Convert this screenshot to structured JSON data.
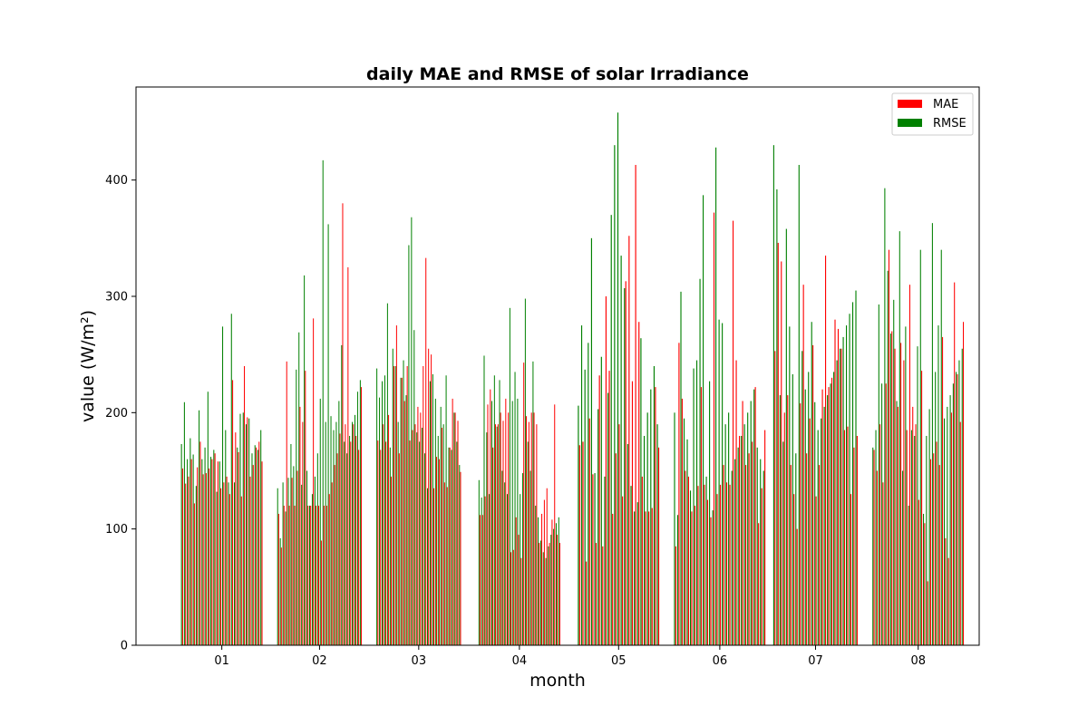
{
  "chart_data": {
    "type": "bar",
    "title": "daily MAE and RMSE of solar Irradiance",
    "xlabel": "month",
    "ylabel": "value (W/m²)",
    "ylim": [
      0,
      480
    ],
    "yticks": [
      0,
      100,
      200,
      300,
      400
    ],
    "xlim": [
      0.1,
      8.6
    ],
    "months": [
      {
        "label": "01",
        "start": 0.55,
        "end": 1.38
      },
      {
        "label": "02",
        "start": 1.52,
        "end": 2.38
      },
      {
        "label": "03",
        "start": 2.52,
        "end": 3.38
      },
      {
        "label": "04",
        "start": 3.55,
        "end": 4.38
      },
      {
        "label": "05",
        "start": 4.55,
        "end": 5.38
      },
      {
        "label": "06",
        "start": 5.52,
        "end": 6.45
      },
      {
        "label": "07",
        "start": 6.52,
        "end": 7.38
      },
      {
        "label": "08",
        "start": 7.52,
        "end": 8.45
      }
    ],
    "legend": {
      "position": "top-right"
    },
    "grid": false,
    "series": [
      {
        "name": "MAE",
        "color": "#ff0000",
        "values": [
          [
            152,
            139,
            145,
            160,
            122,
            153,
            175,
            147,
            148,
            152,
            160,
            165,
            158,
            135,
            140,
            145,
            130,
            228,
            183,
            166,
            128,
            240,
            196,
            145,
            155,
            170,
            175,
            158
          ],
          [
            113,
            84,
            120,
            244,
            120,
            144,
            120,
            150,
            205,
            192,
            236,
            120,
            120,
            281,
            120,
            120,
            90,
            120,
            120,
            130,
            140,
            155,
            165,
            182,
            380,
            190,
            325,
            175,
            190,
            180,
            168,
            222
          ],
          [
            176,
            168,
            190,
            175,
            198,
            145,
            240,
            275,
            165,
            230,
            210,
            240,
            176,
            185,
            190,
            205,
            200,
            240,
            333,
            255,
            250,
            135,
            162,
            160,
            187,
            140,
            136,
            170,
            212,
            200,
            193,
            149
          ],
          [
            112,
            112,
            128,
            207,
            220,
            170,
            190,
            190,
            200,
            193,
            212,
            200,
            80,
            82,
            110,
            95,
            75,
            243,
            197,
            192,
            200,
            200,
            190,
            88,
            113,
            125,
            135,
            88,
            108,
            207,
            95,
            88
          ],
          [
            172,
            175,
            72,
            195,
            147,
            88,
            232,
            85,
            300,
            236,
            113,
            165,
            190,
            128,
            313,
            352,
            227,
            413,
            278,
            145,
            115,
            115,
            118,
            222,
            170
          ],
          [
            85,
            260,
            212,
            150,
            145,
            115,
            120,
            137,
            222,
            138,
            125,
            110,
            372,
            130,
            138,
            155,
            140,
            138,
            365,
            245,
            180,
            210,
            155,
            165,
            175,
            222,
            105,
            135,
            185
          ],
          [
            253,
            346,
            330,
            200,
            215,
            155,
            130,
            100,
            208,
            310,
            165,
            195,
            258,
            128,
            155,
            220,
            335,
            222,
            230,
            280,
            272,
            255,
            185,
            188,
            130,
            170,
            180
          ],
          [
            168,
            150,
            190,
            140,
            225,
            340,
            270,
            255,
            205,
            260,
            245,
            185,
            310,
            205,
            190,
            125,
            236,
            105,
            55,
            160,
            165,
            175,
            155,
            265,
            92,
            75,
            200,
            312,
            233,
            192,
            278
          ]
        ]
      },
      {
        "name": "RMSE",
        "color": "#008000",
        "values": [
          [
            173,
            209,
            160,
            178,
            164,
            137,
            202,
            160,
            170,
            218,
            162,
            168,
            132,
            158,
            274,
            185,
            140,
            285,
            140,
            170,
            199,
            200,
            190,
            195,
            165,
            172,
            168,
            185
          ],
          [
            135,
            92,
            140,
            115,
            144,
            173,
            154,
            237,
            269,
            138,
            318,
            150,
            120,
            130,
            145,
            165,
            212,
            417,
            192,
            362,
            197,
            185,
            192,
            210,
            258,
            175,
            165,
            180,
            192,
            198,
            218,
            228
          ],
          [
            238,
            213,
            227,
            232,
            294,
            170,
            255,
            240,
            192,
            230,
            245,
            215,
            344,
            368,
            271,
            183,
            175,
            187,
            165,
            135,
            227,
            233,
            212,
            180,
            205,
            190,
            232,
            170,
            168,
            200,
            175,
            155
          ],
          [
            142,
            127,
            249,
            183,
            130,
            210,
            232,
            188,
            228,
            150,
            140,
            130,
            290,
            210,
            235,
            212,
            130,
            148,
            298,
            175,
            150,
            244,
            120,
            110,
            90,
            80,
            75,
            85,
            95,
            100,
            105,
            110
          ],
          [
            206,
            275,
            237,
            260,
            350,
            148,
            203,
            248,
            145,
            217,
            370,
            430,
            458,
            335,
            307,
            173,
            137,
            115,
            123,
            264,
            180,
            200,
            220,
            240,
            190
          ],
          [
            200,
            112,
            304,
            195,
            177,
            133,
            238,
            245,
            315,
            387,
            145,
            227,
            116,
            428,
            280,
            277,
            190,
            200,
            150,
            160,
            170,
            180,
            190,
            200,
            210,
            220,
            170,
            160,
            150
          ],
          [
            430,
            392,
            215,
            175,
            358,
            274,
            233,
            165,
            413,
            253,
            220,
            235,
            278,
            209,
            185,
            195,
            205,
            215,
            225,
            235,
            245,
            255,
            265,
            275,
            285,
            295,
            305
          ],
          [
            170,
            185,
            293,
            225,
            393,
            322,
            268,
            297,
            210,
            356,
            150,
            274,
            120,
            185,
            180,
            257,
            340,
            113,
            180,
            203,
            363,
            235,
            275,
            340,
            195,
            205,
            215,
            225,
            235,
            245,
            255
          ]
        ]
      }
    ]
  }
}
